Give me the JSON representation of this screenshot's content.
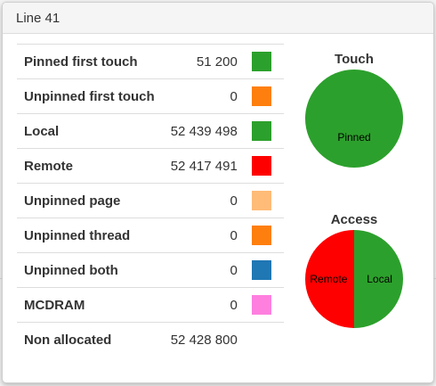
{
  "popup": {
    "title": "Line 41"
  },
  "rows": [
    {
      "label": "Pinned first touch",
      "value": "51 200",
      "color": "#2ca02c"
    },
    {
      "label": "Unpinned first touch",
      "value": "0",
      "color": "#ff7f0e"
    },
    {
      "label": "Local",
      "value": "52 439 498",
      "color": "#2ca02c"
    },
    {
      "label": "Remote",
      "value": "52 417 491",
      "color": "#ff0000"
    },
    {
      "label": "Unpinned page",
      "value": "0",
      "color": "#ffbb78"
    },
    {
      "label": "Unpinned thread",
      "value": "0",
      "color": "#ff7f0e"
    },
    {
      "label": "Unpinned both",
      "value": "0",
      "color": "#1f77b4"
    },
    {
      "label": "MCDRAM",
      "value": "0",
      "color": "#ff7fdf"
    },
    {
      "label": "Non allocated",
      "value": "52 428 800",
      "color": ""
    }
  ],
  "chart_data": [
    {
      "type": "pie",
      "title": "Touch",
      "slices": [
        {
          "label": "Pinned",
          "value": 51200,
          "color": "#2ca02c"
        }
      ]
    },
    {
      "type": "pie",
      "title": "Access",
      "slices": [
        {
          "label": "Local",
          "value": 52439498,
          "color": "#2ca02c"
        },
        {
          "label": "Remote",
          "value": 52417491,
          "color": "#ff0000"
        }
      ]
    }
  ]
}
